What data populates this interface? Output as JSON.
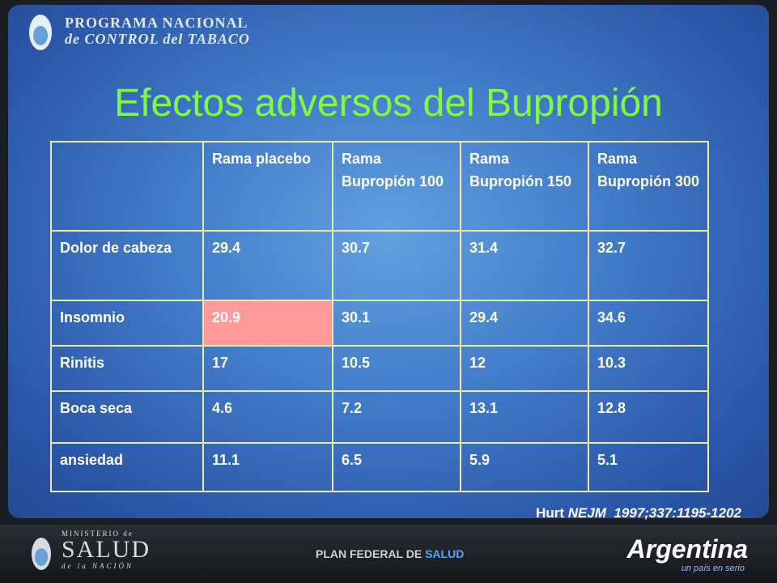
{
  "header": {
    "line1": "PROGRAMA NACIONAL",
    "line2": "de CONTROL del TABACO"
  },
  "title": "Efectos adversos del Bupropión",
  "table": {
    "header": [
      "",
      "Rama placebo",
      "Rama Bupropión 100",
      "Rama Bupropión 150",
      "Rama Bupropión 300"
    ],
    "rows": [
      [
        "Dolor de cabeza",
        "29.4",
        "30.7",
        "31.4",
        "32.7"
      ],
      [
        "Insomnio",
        "20.9",
        "30.1",
        "29.4",
        "34.6"
      ],
      [
        "Rinitis",
        "17",
        "10.5",
        "12",
        "10.3"
      ],
      [
        "Boca seca",
        "4.6",
        "7.2",
        "13.1",
        "12.8"
      ],
      [
        "ansiedad",
        "11.1",
        "6.5",
        "5.9",
        "5.1"
      ]
    ]
  },
  "citation": {
    "author": "Hurt",
    "journal": "NEJM",
    "reference": "1997;337:1195-1202"
  },
  "footer": {
    "ministry_top": "MINISTERIO de",
    "ministry_main": "SALUD",
    "ministry_bottom": "de la NACIÓN",
    "plan": "PLAN FEDERAL DE",
    "plan_highlight": "SALUD",
    "brand": "Argentina",
    "slogan": "un país en serio"
  }
}
